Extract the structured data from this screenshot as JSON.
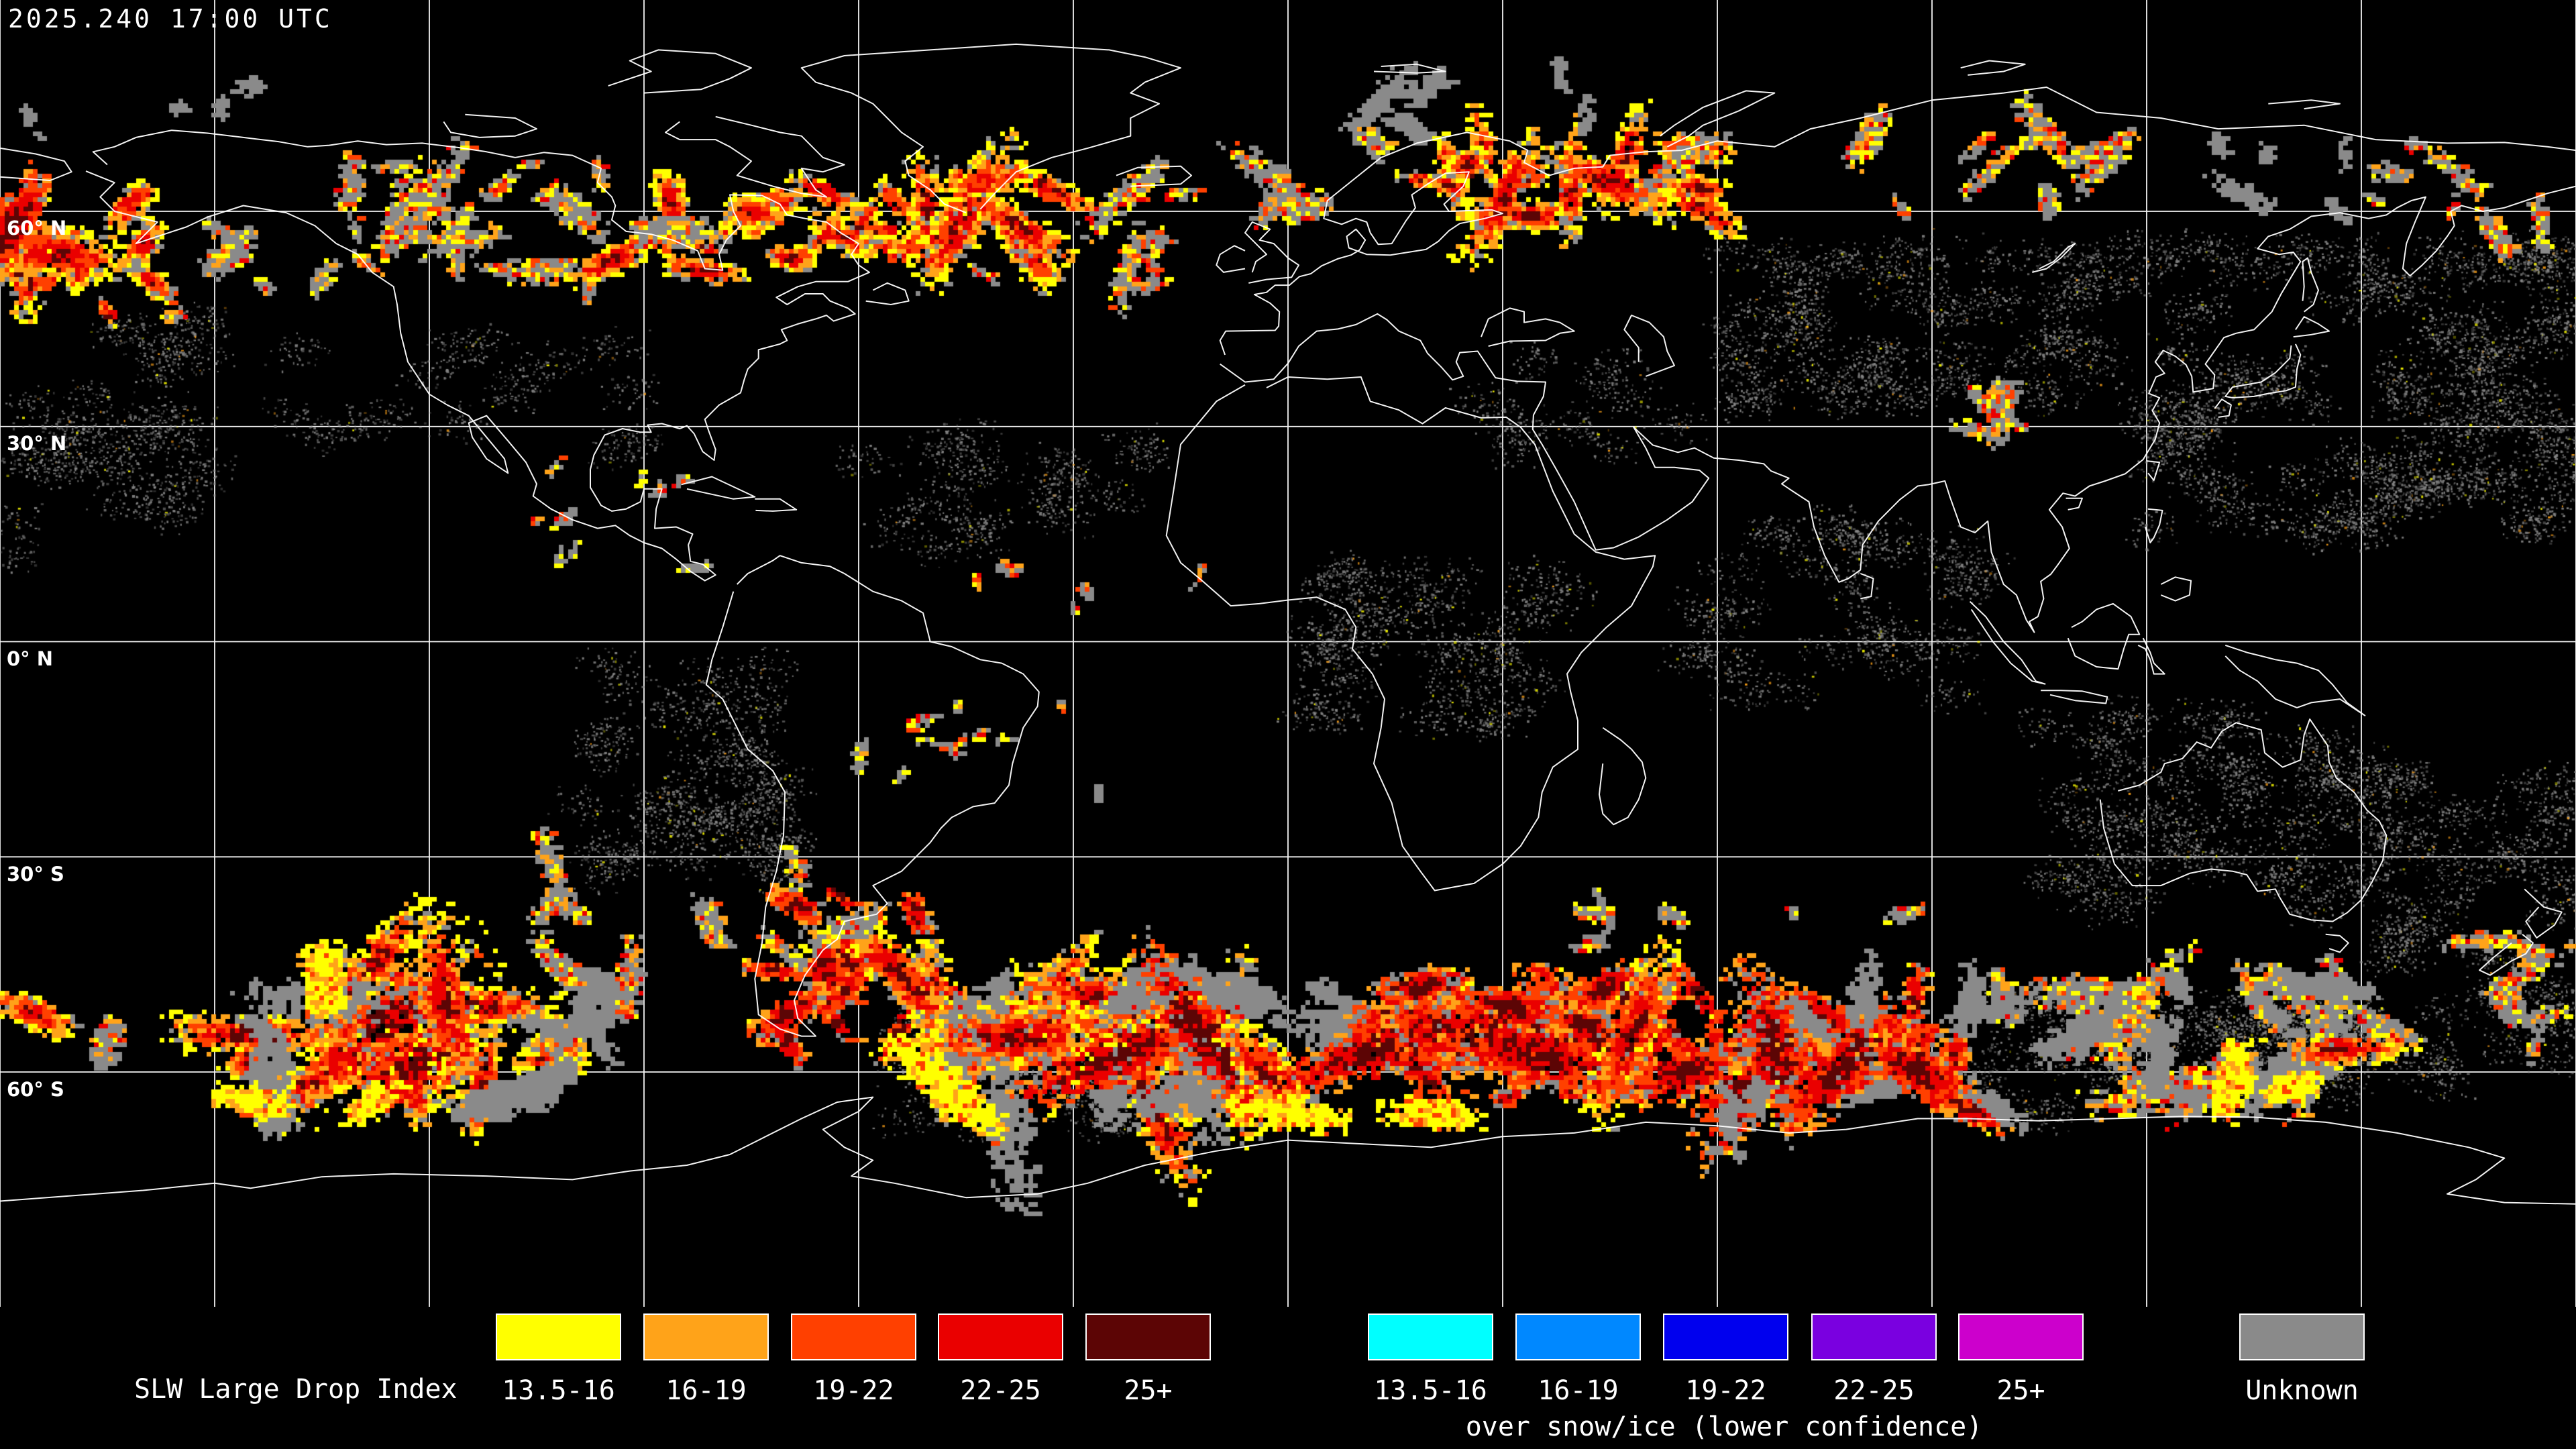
{
  "header": {
    "timestamp": "2025.240 17:00 UTC"
  },
  "map": {
    "projection": "equirectangular",
    "latitude_labels": [
      "60° N",
      "30° N",
      "0° N",
      "30° S",
      "60° S"
    ],
    "background_color": "#000000",
    "gridline_color": "#ffffff",
    "coastline_color": "#ffffff"
  },
  "legend": {
    "title": "SLW Large Drop Index",
    "standard": {
      "items": [
        {
          "label": "13.5-16",
          "color": "#ffff00"
        },
        {
          "label": "16-19",
          "color": "#ffa319"
        },
        {
          "label": "19-22",
          "color": "#ff4000"
        },
        {
          "label": "22-25",
          "color": "#ea0000"
        },
        {
          "label": "25+",
          "color": "#5c0505"
        }
      ]
    },
    "snow_ice": {
      "caption": "over snow/ice (lower confidence)",
      "items": [
        {
          "label": "13.5-16",
          "color": "#00ffff"
        },
        {
          "label": "16-19",
          "color": "#0088ff"
        },
        {
          "label": "19-22",
          "color": "#0000ee"
        },
        {
          "label": "22-25",
          "color": "#7a00e0"
        },
        {
          "label": "25+",
          "color": "#cc00cc"
        }
      ]
    },
    "unknown": {
      "label": "Unknown",
      "color": "#8a8a8a"
    }
  }
}
